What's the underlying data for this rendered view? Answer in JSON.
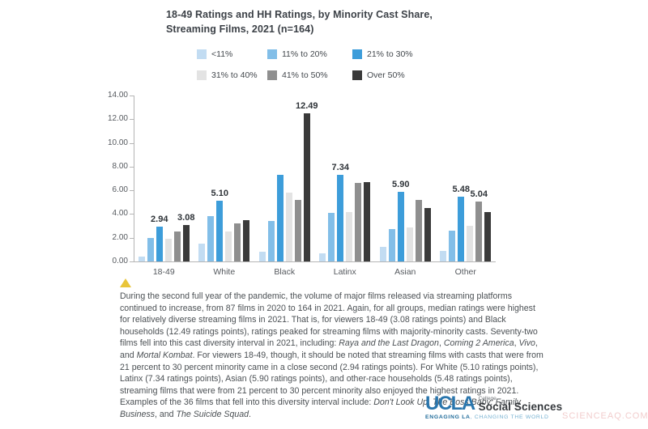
{
  "title": {
    "line1": "18-49 Ratings and HH Ratings, by Minority Cast Share,",
    "line2": "Streaming Films, 2021 (n=164)"
  },
  "colors": {
    "title_text": "#3c4147",
    "axis_line": "#b5b5b5",
    "marker_yellow": "#e9c53a",
    "ucla_blue": "#2a76ad",
    "logo_dark": "#35393d",
    "tagline_dark": "#1f6b9a",
    "tagline_light": "#74b0d1",
    "watermark_pink": "#f2cdcd"
  },
  "legend": {
    "items": [
      {
        "label": "<11%",
        "color": "#c2dcf2"
      },
      {
        "label": "11% to 20%",
        "color": "#82bee8"
      },
      {
        "label": "21% to 30%",
        "color": "#3d9dda"
      },
      {
        "label": "31% to 40%",
        "color": "#e3e3e3"
      },
      {
        "label": "41% to 50%",
        "color": "#8f8f8f"
      },
      {
        "label": "Over 50%",
        "color": "#3a3a3a"
      }
    ]
  },
  "chart_data": {
    "type": "bar",
    "title": "18-49 Ratings and HH Ratings, by Minority Cast Share, Streaming Films, 2021 (n=164)",
    "xlabel": "",
    "ylabel": "",
    "ylim": [
      0,
      14
    ],
    "grid": false,
    "legend_position": "top",
    "categories": [
      "18-49",
      "White",
      "Black",
      "Latinx",
      "Asian",
      "Other"
    ],
    "series": [
      {
        "name": "<11%",
        "color": "#c2dcf2",
        "values": [
          0.4,
          1.5,
          0.8,
          0.7,
          1.2,
          0.9
        ]
      },
      {
        "name": "11% to 20%",
        "color": "#82bee8",
        "values": [
          2.0,
          3.8,
          3.4,
          4.1,
          2.7,
          2.6
        ]
      },
      {
        "name": "21% to 30%",
        "color": "#3d9dda",
        "values": [
          2.94,
          5.1,
          7.3,
          7.34,
          5.9,
          5.48
        ]
      },
      {
        "name": "31% to 40%",
        "color": "#e3e3e3",
        "values": [
          1.9,
          2.5,
          5.8,
          4.2,
          2.9,
          3.0
        ]
      },
      {
        "name": "41% to 50%",
        "color": "#8f8f8f",
        "values": [
          2.5,
          3.2,
          5.2,
          6.6,
          5.2,
          5.04
        ]
      },
      {
        "name": "Over 50%",
        "color": "#3a3a3a",
        "values": [
          3.08,
          3.5,
          12.49,
          6.7,
          4.5,
          4.2
        ]
      }
    ],
    "point_labels": [
      {
        "category": "18-49",
        "series": "21% to 30%",
        "text": "2.94"
      },
      {
        "category": "18-49",
        "series": "Over 50%",
        "text": "3.08"
      },
      {
        "category": "White",
        "series": "21% to 30%",
        "text": "5.10"
      },
      {
        "category": "Black",
        "series": "Over 50%",
        "text": "12.49"
      },
      {
        "category": "Latinx",
        "series": "21% to 30%",
        "text": "7.34"
      },
      {
        "category": "Asian",
        "series": "21% to 30%",
        "text": "5.90"
      },
      {
        "category": "Other",
        "series": "21% to 30%",
        "text": "5.48"
      },
      {
        "category": "Other",
        "series": "41% to 50%",
        "text": "5.04"
      }
    ],
    "y_ticks": [
      {
        "value": 0,
        "label": "0.00"
      },
      {
        "value": 2,
        "label": "2.00"
      },
      {
        "value": 4,
        "label": "4.00"
      },
      {
        "value": 6,
        "label": "6.00"
      },
      {
        "value": 8,
        "label": "8.00"
      },
      {
        "value": 10,
        "label": "10.00"
      },
      {
        "value": 12,
        "label": "12.00"
      },
      {
        "value": 14,
        "label": "14.00"
      }
    ]
  },
  "caption": {
    "segments": [
      {
        "text": "During the second full year of the pandemic, the volume of major films released via streaming platforms continued to increase, from 87 films in 2020 to 164 in 2021. Again, for all groups, median ratings were highest for relatively diverse streaming films in 2021. That is, for viewers 18-49 (3.08 ratings points) and Black households (12.49 ratings points), ratings peaked for streaming films with majority-minority casts. Seventy-two films fell into this cast diversity interval in 2021, including: ",
        "italic": false
      },
      {
        "text": "Raya and the Last Dragon",
        "italic": true
      },
      {
        "text": ", ",
        "italic": false
      },
      {
        "text": "Coming 2 America",
        "italic": true
      },
      {
        "text": ", ",
        "italic": false
      },
      {
        "text": "Vivo",
        "italic": true
      },
      {
        "text": ", and ",
        "italic": false
      },
      {
        "text": "Mortal Kombat",
        "italic": true
      },
      {
        "text": ". For viewers 18-49, though, it should be noted that streaming films with casts that were from 21 percent to 30 percent minority came in a close second (2.94 ratings points). For White (5.10 ratings points), Latinx (7.34 ratings points), Asian (5.90 ratings points), and other-race households (5.48 ratings points), streaming films that were from 21 percent to 30 percent minority also enjoyed the highest ratings in 2021. Examples of the 36 films that fell into this diversity interval include: ",
        "italic": false
      },
      {
        "text": "Don't Look Up",
        "italic": true
      },
      {
        "text": ", ",
        "italic": false
      },
      {
        "text": "The Boss Baby: Family Business",
        "italic": true
      },
      {
        "text": ", and ",
        "italic": false
      },
      {
        "text": "The Suicide Squad",
        "italic": true
      },
      {
        "text": ".",
        "italic": false
      }
    ]
  },
  "footer": {
    "ucla": "UCLA",
    "college": "College",
    "social_sciences": "Social Sciences",
    "tagline_bold": "ENGAGING LA",
    "tagline_rest": ", CHANGING THE WORLD"
  },
  "watermark": {
    "text": "SCIENCEAQ.COM"
  }
}
